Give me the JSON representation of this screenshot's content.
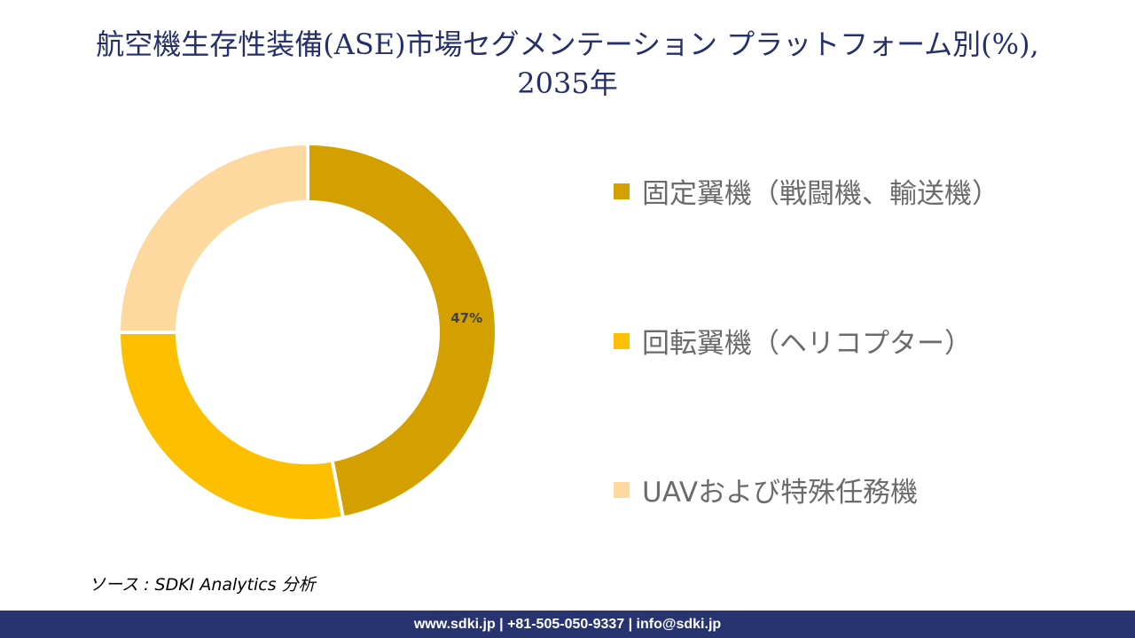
{
  "title_line1": "航空機生存性装備(ASE)市場セグメンテーション プラットフォーム別(%),",
  "title_line2": "2035年",
  "chart_data": {
    "type": "pie",
    "donut": true,
    "categories": [
      "固定翼機（戦闘機、輸送機）",
      "回転翼機（ヘリコプター）",
      "UAVおよび特殊任務機"
    ],
    "values": [
      47,
      28,
      25
    ],
    "colors": [
      "#D4A000",
      "#FDC000",
      "#FDD9A0"
    ],
    "data_labels": [
      "47%",
      "",
      ""
    ],
    "legend_position": "right"
  },
  "source": "ソース : SDKI Analytics 分析",
  "footer": "www.sdki.jp | +81-505-050-9337 | info@sdki.jp"
}
